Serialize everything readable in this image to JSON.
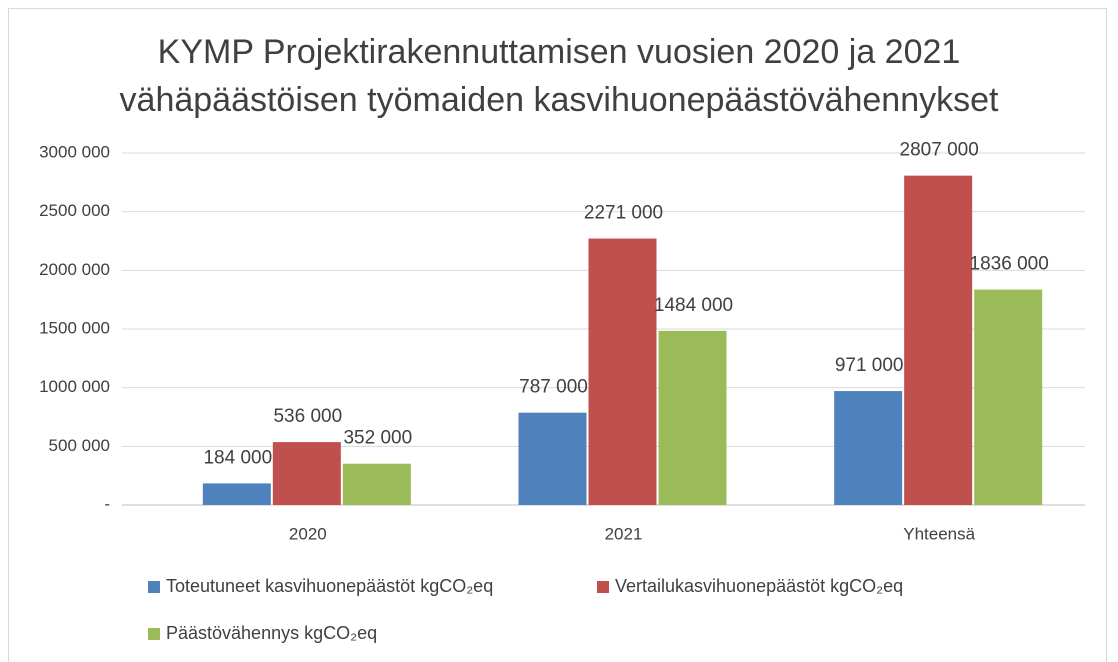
{
  "chart_data": {
    "type": "bar",
    "title": "KYMP Projektirakennuttamisen vuosien 2020 ja 2021\nvähäpäästöisen työmaiden kasvihuonepäästövähennykset",
    "categories": [
      "2020",
      "2021",
      "Yhteensä"
    ],
    "series": [
      {
        "name": "Toteutuneet kasvihuonepäästöt kgCO₂eq",
        "color": "#4f81bd",
        "values": [
          184000,
          787000,
          971000
        ],
        "value_labels": [
          "184 000",
          "787 000",
          "971 000"
        ]
      },
      {
        "name": "Vertailukasvihuonepäästöt kgCO₂eq",
        "color": "#c0504d",
        "values": [
          536000,
          2271000,
          2807000
        ],
        "value_labels": [
          "536 000",
          "2271 000",
          "2807 000"
        ]
      },
      {
        "name": "Päästövähennys kgCO₂eq",
        "color": "#9bbb59",
        "values": [
          352000,
          1484000,
          1836000
        ],
        "value_labels": [
          "352 000",
          "1484 000",
          "1836 000"
        ]
      }
    ],
    "ylim": [
      0,
      3000000
    ],
    "yticks": [
      {
        "value": 0,
        "label": "-"
      },
      {
        "value": 500000,
        "label": "500 000"
      },
      {
        "value": 1000000,
        "label": "1000 000"
      },
      {
        "value": 1500000,
        "label": "1500 000"
      },
      {
        "value": 2000000,
        "label": "2000 000"
      },
      {
        "value": 2500000,
        "label": "2500 000"
      },
      {
        "value": 3000000,
        "label": "3000 000"
      }
    ],
    "grid": true,
    "legend": "bottom"
  }
}
